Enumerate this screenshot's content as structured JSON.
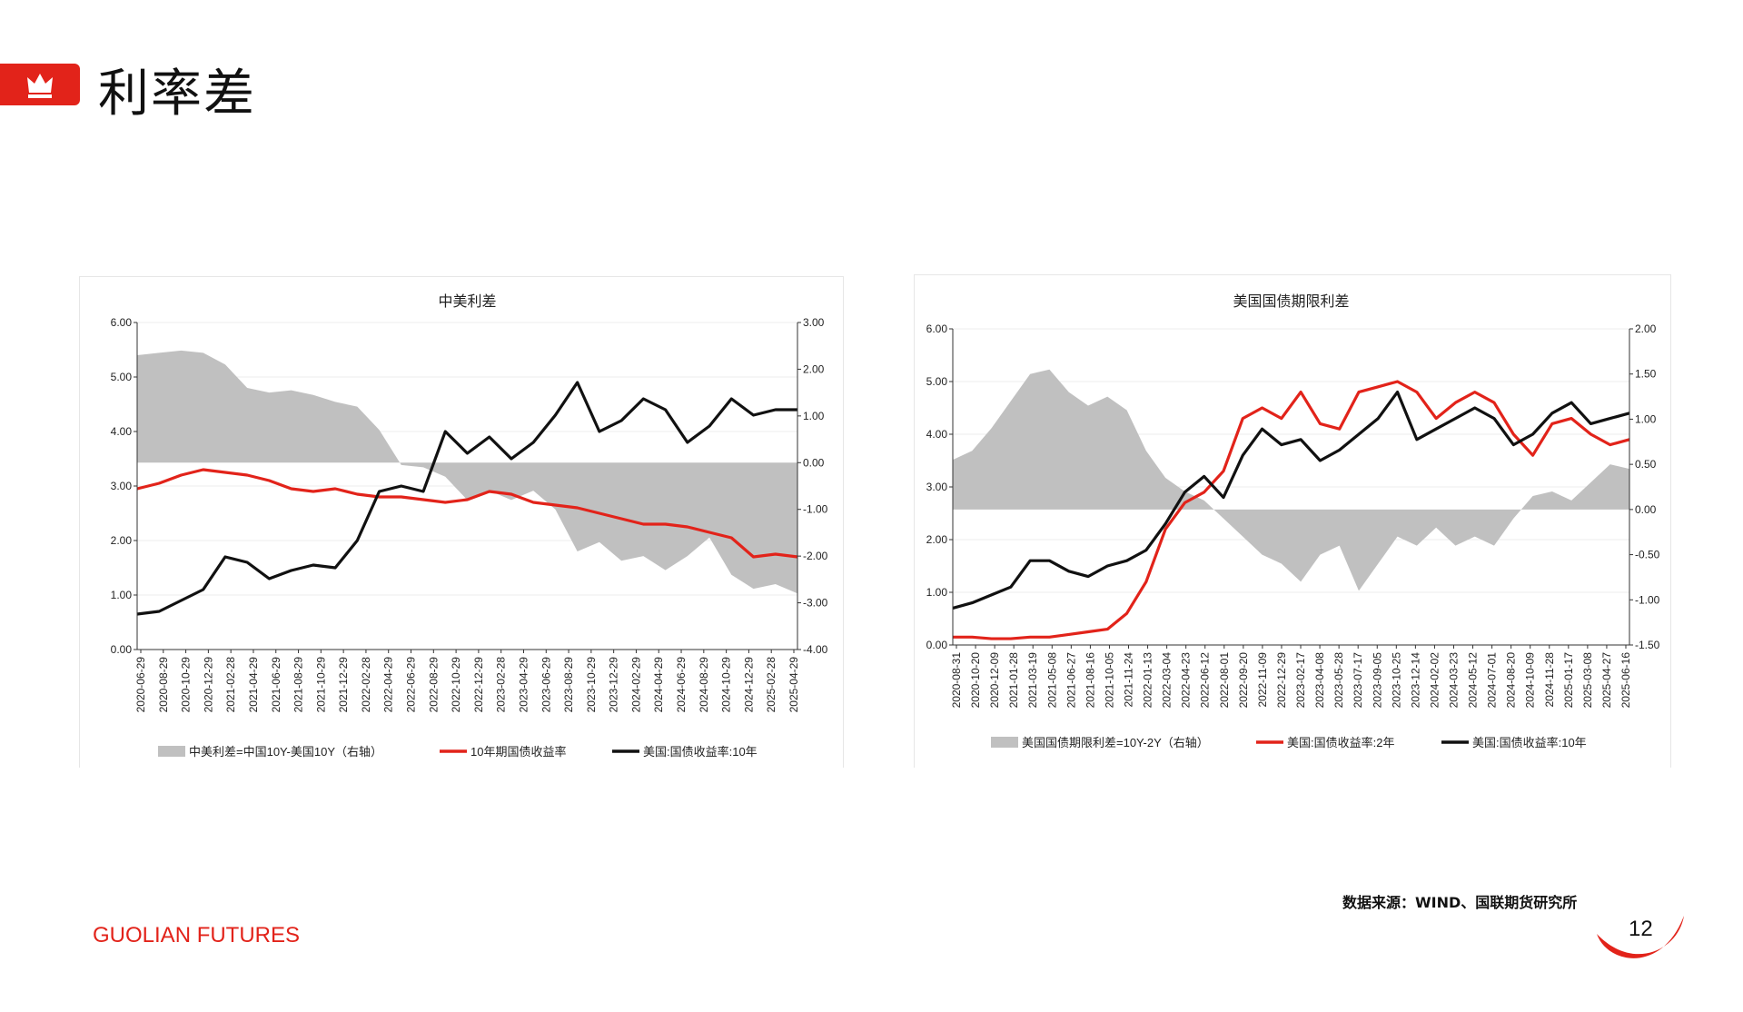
{
  "page": {
    "title": "利率差",
    "source": "数据来源：WIND、国联期货研究所",
    "brand": "GUOLIAN FUTURES",
    "page_number": "12"
  },
  "colors": {
    "accent": "#e2231a",
    "gray_area": "#c0c0c0",
    "black_line": "#111111",
    "red_line": "#e2231a"
  },
  "icons": {
    "header": "crown-icon"
  },
  "chart_data": [
    {
      "type": "line",
      "title": "中美利差",
      "left_ticks": [
        "6.00",
        "5.00",
        "4.00",
        "3.00",
        "2.00",
        "1.00",
        "0.00"
      ],
      "right_ticks": [
        "3.00",
        "2.00",
        "1.00",
        "0.00",
        "-1.00",
        "-2.00",
        "-3.00",
        "-4.00"
      ],
      "ylim_left": [
        0,
        6
      ],
      "ylim_right": [
        -4,
        3
      ],
      "x_ticks": [
        "2020-06-29",
        "2020-08-29",
        "2020-10-29",
        "2020-12-29",
        "2021-02-28",
        "2021-04-29",
        "2021-06-29",
        "2021-08-29",
        "2021-10-29",
        "2021-12-29",
        "2022-02-28",
        "2022-04-29",
        "2022-06-29",
        "2022-08-29",
        "2022-10-29",
        "2022-12-29",
        "2023-02-28",
        "2023-04-29",
        "2023-06-29",
        "2023-08-29",
        "2023-10-29",
        "2023-12-29",
        "2024-02-29",
        "2024-04-29",
        "2024-06-29",
        "2024-08-29",
        "2024-10-29",
        "2024-12-29",
        "2025-02-28",
        "2025-04-29"
      ],
      "series": [
        {
          "name": "中美利差=中国10Y-美国10Y（右轴）",
          "kind": "area",
          "axis": "right",
          "color": "#c0c0c0",
          "x": [
            0,
            2,
            4,
            6,
            8,
            10,
            12,
            14,
            16,
            18,
            20,
            22,
            24,
            26,
            28,
            30,
            32,
            34,
            36,
            38,
            40,
            42,
            44,
            46,
            48,
            50,
            52,
            54,
            56,
            58,
            60
          ],
          "values": [
            2.3,
            2.35,
            2.4,
            2.35,
            2.1,
            1.6,
            1.5,
            1.55,
            1.45,
            1.3,
            1.2,
            0.7,
            -0.05,
            -0.1,
            -0.3,
            -0.8,
            -0.6,
            -0.8,
            -0.6,
            -1.0,
            -1.9,
            -1.7,
            -2.1,
            -2.0,
            -2.3,
            -2.0,
            -1.6,
            -2.4,
            -2.7,
            -2.6,
            -2.8
          ]
        },
        {
          "name": "10年期国债收益率",
          "kind": "line",
          "axis": "left",
          "color": "#e2231a",
          "x": [
            0,
            2,
            4,
            6,
            8,
            10,
            12,
            14,
            16,
            18,
            20,
            22,
            24,
            26,
            28,
            30,
            32,
            34,
            36,
            38,
            40,
            42,
            44,
            46,
            48,
            50,
            52,
            54,
            56,
            58,
            60
          ],
          "values": [
            2.95,
            3.05,
            3.2,
            3.3,
            3.25,
            3.2,
            3.1,
            2.95,
            2.9,
            2.95,
            2.85,
            2.8,
            2.8,
            2.75,
            2.7,
            2.75,
            2.9,
            2.85,
            2.7,
            2.65,
            2.6,
            2.5,
            2.4,
            2.3,
            2.3,
            2.25,
            2.15,
            2.05,
            1.7,
            1.75,
            1.7
          ]
        },
        {
          "name": "美国:国债收益率:10年",
          "kind": "line",
          "axis": "left",
          "color": "#111111",
          "x": [
            0,
            2,
            4,
            6,
            8,
            10,
            12,
            14,
            16,
            18,
            20,
            22,
            24,
            26,
            28,
            30,
            32,
            34,
            36,
            38,
            40,
            42,
            44,
            46,
            48,
            50,
            52,
            54,
            56,
            58,
            60
          ],
          "values": [
            0.65,
            0.7,
            0.9,
            1.1,
            1.7,
            1.6,
            1.3,
            1.45,
            1.55,
            1.5,
            2.0,
            2.9,
            3.0,
            2.9,
            4.0,
            3.6,
            3.9,
            3.5,
            3.8,
            4.3,
            4.9,
            4.0,
            4.2,
            4.6,
            4.4,
            3.8,
            4.1,
            4.6,
            4.3,
            4.4,
            4.4
          ]
        }
      ],
      "legend_position": "bottom"
    },
    {
      "type": "line",
      "title": "美国国债期限利差",
      "left_ticks": [
        "6.00",
        "5.00",
        "4.00",
        "3.00",
        "2.00",
        "1.00",
        "0.00"
      ],
      "right_ticks": [
        "2.00",
        "1.50",
        "1.00",
        "0.50",
        "0.00",
        "-0.50",
        "-1.00",
        "-1.50"
      ],
      "ylim_left": [
        0,
        6
      ],
      "ylim_right": [
        -1.5,
        2
      ],
      "x_ticks": [
        "2020-08-31",
        "2020-10-20",
        "2020-12-09",
        "2021-01-28",
        "2021-03-19",
        "2021-05-08",
        "2021-06-27",
        "2021-08-16",
        "2021-10-05",
        "2021-11-24",
        "2022-01-13",
        "2022-03-04",
        "2022-04-23",
        "2022-06-12",
        "2022-08-01",
        "2022-09-20",
        "2022-11-09",
        "2022-12-29",
        "2023-02-17",
        "2023-04-08",
        "2023-05-28",
        "2023-07-17",
        "2023-09-05",
        "2023-10-25",
        "2023-12-14",
        "2024-02-02",
        "2024-03-23",
        "2024-05-12",
        "2024-07-01",
        "2024-08-20",
        "2024-10-09",
        "2024-11-28",
        "2025-01-17",
        "2025-03-08",
        "2025-04-27",
        "2025-06-16"
      ],
      "series": [
        {
          "name": "美国国债期限利差=10Y-2Y（右轴）",
          "kind": "area",
          "axis": "right",
          "color": "#c0c0c0",
          "x": [
            0,
            2,
            4,
            6,
            8,
            10,
            12,
            14,
            16,
            18,
            20,
            22,
            24,
            26,
            28,
            30,
            32,
            34,
            36,
            38,
            40,
            42,
            44,
            46,
            48,
            50,
            52,
            54,
            56,
            58,
            60,
            62,
            64,
            66,
            68,
            70
          ],
          "values": [
            0.55,
            0.65,
            0.9,
            1.2,
            1.5,
            1.55,
            1.3,
            1.15,
            1.25,
            1.1,
            0.65,
            0.35,
            0.2,
            0.1,
            -0.1,
            -0.3,
            -0.5,
            -0.6,
            -0.8,
            -0.5,
            -0.4,
            -0.9,
            -0.6,
            -0.3,
            -0.4,
            -0.2,
            -0.4,
            -0.3,
            -0.4,
            -0.1,
            0.15,
            0.2,
            0.1,
            0.3,
            0.5,
            0.45
          ]
        },
        {
          "name": "美国:国债收益率:2年",
          "kind": "line",
          "axis": "left",
          "color": "#e2231a",
          "x": [
            0,
            2,
            4,
            6,
            8,
            10,
            12,
            14,
            16,
            18,
            20,
            22,
            24,
            26,
            28,
            30,
            32,
            34,
            36,
            38,
            40,
            42,
            44,
            46,
            48,
            50,
            52,
            54,
            56,
            58,
            60,
            62,
            64,
            66,
            68,
            70
          ],
          "values": [
            0.15,
            0.15,
            0.12,
            0.12,
            0.15,
            0.15,
            0.2,
            0.25,
            0.3,
            0.6,
            1.2,
            2.2,
            2.7,
            2.9,
            3.3,
            4.3,
            4.5,
            4.3,
            4.8,
            4.2,
            4.1,
            4.8,
            4.9,
            5.0,
            4.8,
            4.3,
            4.6,
            4.8,
            4.6,
            4.0,
            3.6,
            4.2,
            4.3,
            4.0,
            3.8,
            3.9
          ]
        },
        {
          "name": "美国:国债收益率:10年",
          "kind": "line",
          "axis": "left",
          "color": "#111111",
          "x": [
            0,
            2,
            4,
            6,
            8,
            10,
            12,
            14,
            16,
            18,
            20,
            22,
            24,
            26,
            28,
            30,
            32,
            34,
            36,
            38,
            40,
            42,
            44,
            46,
            48,
            50,
            52,
            54,
            56,
            58,
            60,
            62,
            64,
            66,
            68,
            70
          ],
          "values": [
            0.7,
            0.8,
            0.95,
            1.1,
            1.6,
            1.6,
            1.4,
            1.3,
            1.5,
            1.6,
            1.8,
            2.3,
            2.9,
            3.2,
            2.8,
            3.6,
            4.1,
            3.8,
            3.9,
            3.5,
            3.7,
            4.0,
            4.3,
            4.8,
            3.9,
            4.1,
            4.3,
            4.5,
            4.3,
            3.8,
            4.0,
            4.4,
            4.6,
            4.2,
            4.3,
            4.4
          ]
        }
      ],
      "legend_position": "bottom"
    }
  ]
}
